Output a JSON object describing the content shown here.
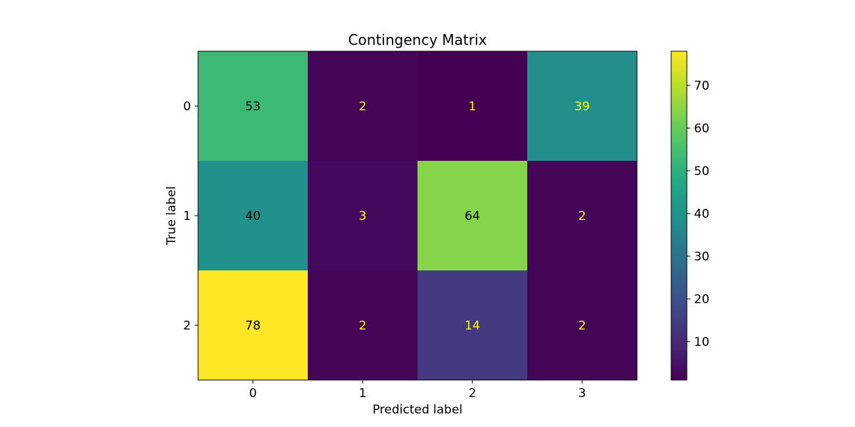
{
  "chart_data": {
    "type": "heatmap",
    "title": "Contingency Matrix",
    "xlabel": "Predicted label",
    "ylabel": "True label",
    "x_categories": [
      "0",
      "1",
      "2",
      "3"
    ],
    "y_categories": [
      "0",
      "1",
      "2"
    ],
    "values": [
      [
        53,
        2,
        1,
        39
      ],
      [
        40,
        3,
        64,
        2
      ],
      [
        78,
        2,
        14,
        2
      ]
    ],
    "colormap": "viridis",
    "color_range": [
      1,
      78
    ],
    "colorbar_ticks": [
      10,
      20,
      30,
      40,
      50,
      60,
      70
    ],
    "text_color_dark": "#000000",
    "text_color_light": "#ffff00",
    "grid": false
  }
}
